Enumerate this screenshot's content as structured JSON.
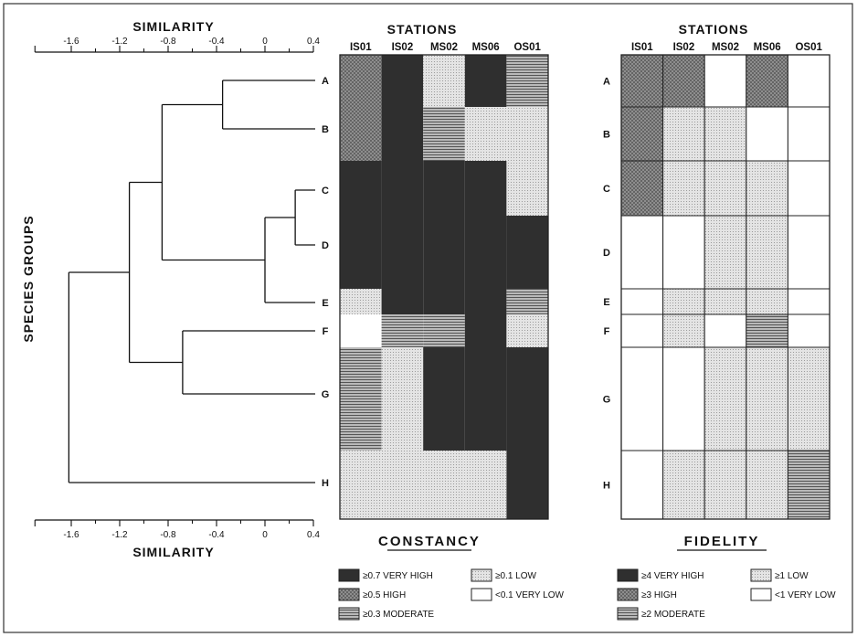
{
  "dendrogram": {
    "axis_title_top": "SIMILARITY",
    "axis_title_bottom": "SIMILARITY",
    "y_label": "SPECIES GROUPS",
    "ticks": [
      -1.6,
      -1.2,
      -0.8,
      -0.4,
      0,
      0.4
    ],
    "tick_labels": [
      "-1.6",
      "-1.2",
      "-0.8",
      "-0.4",
      "0",
      "0.4"
    ],
    "groups": [
      "A",
      "B",
      "C",
      "D",
      "E",
      "F",
      "G",
      "H"
    ],
    "joins": [
      {
        "a": "A",
        "b": "B",
        "sim": -0.35
      },
      {
        "a": "C",
        "b": "D",
        "sim": 0.25
      },
      {
        "a": "CD",
        "b": "E",
        "sim": 0.0
      },
      {
        "a": "AB",
        "b": "CDE",
        "sim": -0.85
      },
      {
        "a": "F",
        "b": "G",
        "sim": -0.68
      },
      {
        "a": "ABCDE",
        "b": "FG",
        "sim": -1.12
      },
      {
        "a": "ABCDEFG",
        "b": "H",
        "sim": -1.62
      }
    ]
  },
  "stations": [
    "IS01",
    "IS02",
    "MS02",
    "MS06",
    "OS01"
  ],
  "constancy": {
    "title": "STATIONS",
    "heading": "CONSTANCY",
    "rows": [
      {
        "group": "A",
        "cells": [
          "high",
          "very-high",
          "low",
          "very-high",
          "moderate"
        ]
      },
      {
        "group": "B",
        "cells": [
          "high",
          "very-high",
          "moderate",
          "low",
          "low"
        ]
      },
      {
        "group": "C",
        "cells": [
          "very-high",
          "very-high",
          "very-high",
          "very-high",
          "low"
        ]
      },
      {
        "group": "D",
        "cells": [
          "very-high",
          "very-high",
          "very-high",
          "very-high",
          "very-high"
        ]
      },
      {
        "group": "E",
        "cells": [
          "low",
          "very-high",
          "very-high",
          "very-high",
          "moderate"
        ]
      },
      {
        "group": "F",
        "cells": [
          "very-low",
          "moderate",
          "moderate",
          "very-high",
          "low"
        ]
      },
      {
        "group": "G",
        "cells": [
          "moderate",
          "low",
          "very-high",
          "very-high",
          "very-high"
        ]
      },
      {
        "group": "H",
        "cells": [
          "low",
          "low",
          "low",
          "low",
          "very-high"
        ]
      }
    ],
    "legend": [
      {
        "key": "very-high",
        "label": "≥0.7 VERY HIGH"
      },
      {
        "key": "low",
        "label": "≥0.1 LOW"
      },
      {
        "key": "high",
        "label": "≥0.5 HIGH"
      },
      {
        "key": "very-low",
        "label": "<0.1 VERY LOW"
      },
      {
        "key": "moderate",
        "label": "≥0.3 MODERATE"
      }
    ]
  },
  "fidelity": {
    "title": "STATIONS",
    "heading": "FIDELITY",
    "rows": [
      {
        "group": "A",
        "cells": [
          "high",
          "high",
          "very-low",
          "high",
          "very-low"
        ]
      },
      {
        "group": "B",
        "cells": [
          "high",
          "low",
          "low",
          "very-low",
          "very-low"
        ]
      },
      {
        "group": "C",
        "cells": [
          "high",
          "low",
          "low",
          "low",
          "very-low"
        ]
      },
      {
        "group": "D",
        "cells": [
          "very-low",
          "very-low",
          "low",
          "low",
          "very-low"
        ]
      },
      {
        "group": "E",
        "cells": [
          "very-low",
          "low",
          "low",
          "low",
          "very-low"
        ]
      },
      {
        "group": "F",
        "cells": [
          "very-low",
          "low",
          "very-low",
          "moderate",
          "very-low"
        ]
      },
      {
        "group": "G",
        "cells": [
          "very-low",
          "very-low",
          "low",
          "low",
          "low"
        ]
      },
      {
        "group": "H",
        "cells": [
          "very-low",
          "low",
          "low",
          "low",
          "moderate"
        ]
      }
    ],
    "legend": [
      {
        "key": "very-high",
        "label": "≥4 VERY HIGH"
      },
      {
        "key": "low",
        "label": "≥1 LOW"
      },
      {
        "key": "high",
        "label": "≥3 HIGH"
      },
      {
        "key": "very-low",
        "label": "<1 VERY LOW"
      },
      {
        "key": "moderate",
        "label": "≥2 MODERATE"
      }
    ]
  },
  "colors": {
    "very-high": "#2f2f2f",
    "high": "#8a8a8a",
    "moderate": "#9d9d9d",
    "low": "#dedede",
    "very-low": "#ffffff",
    "ink": "#111111"
  }
}
